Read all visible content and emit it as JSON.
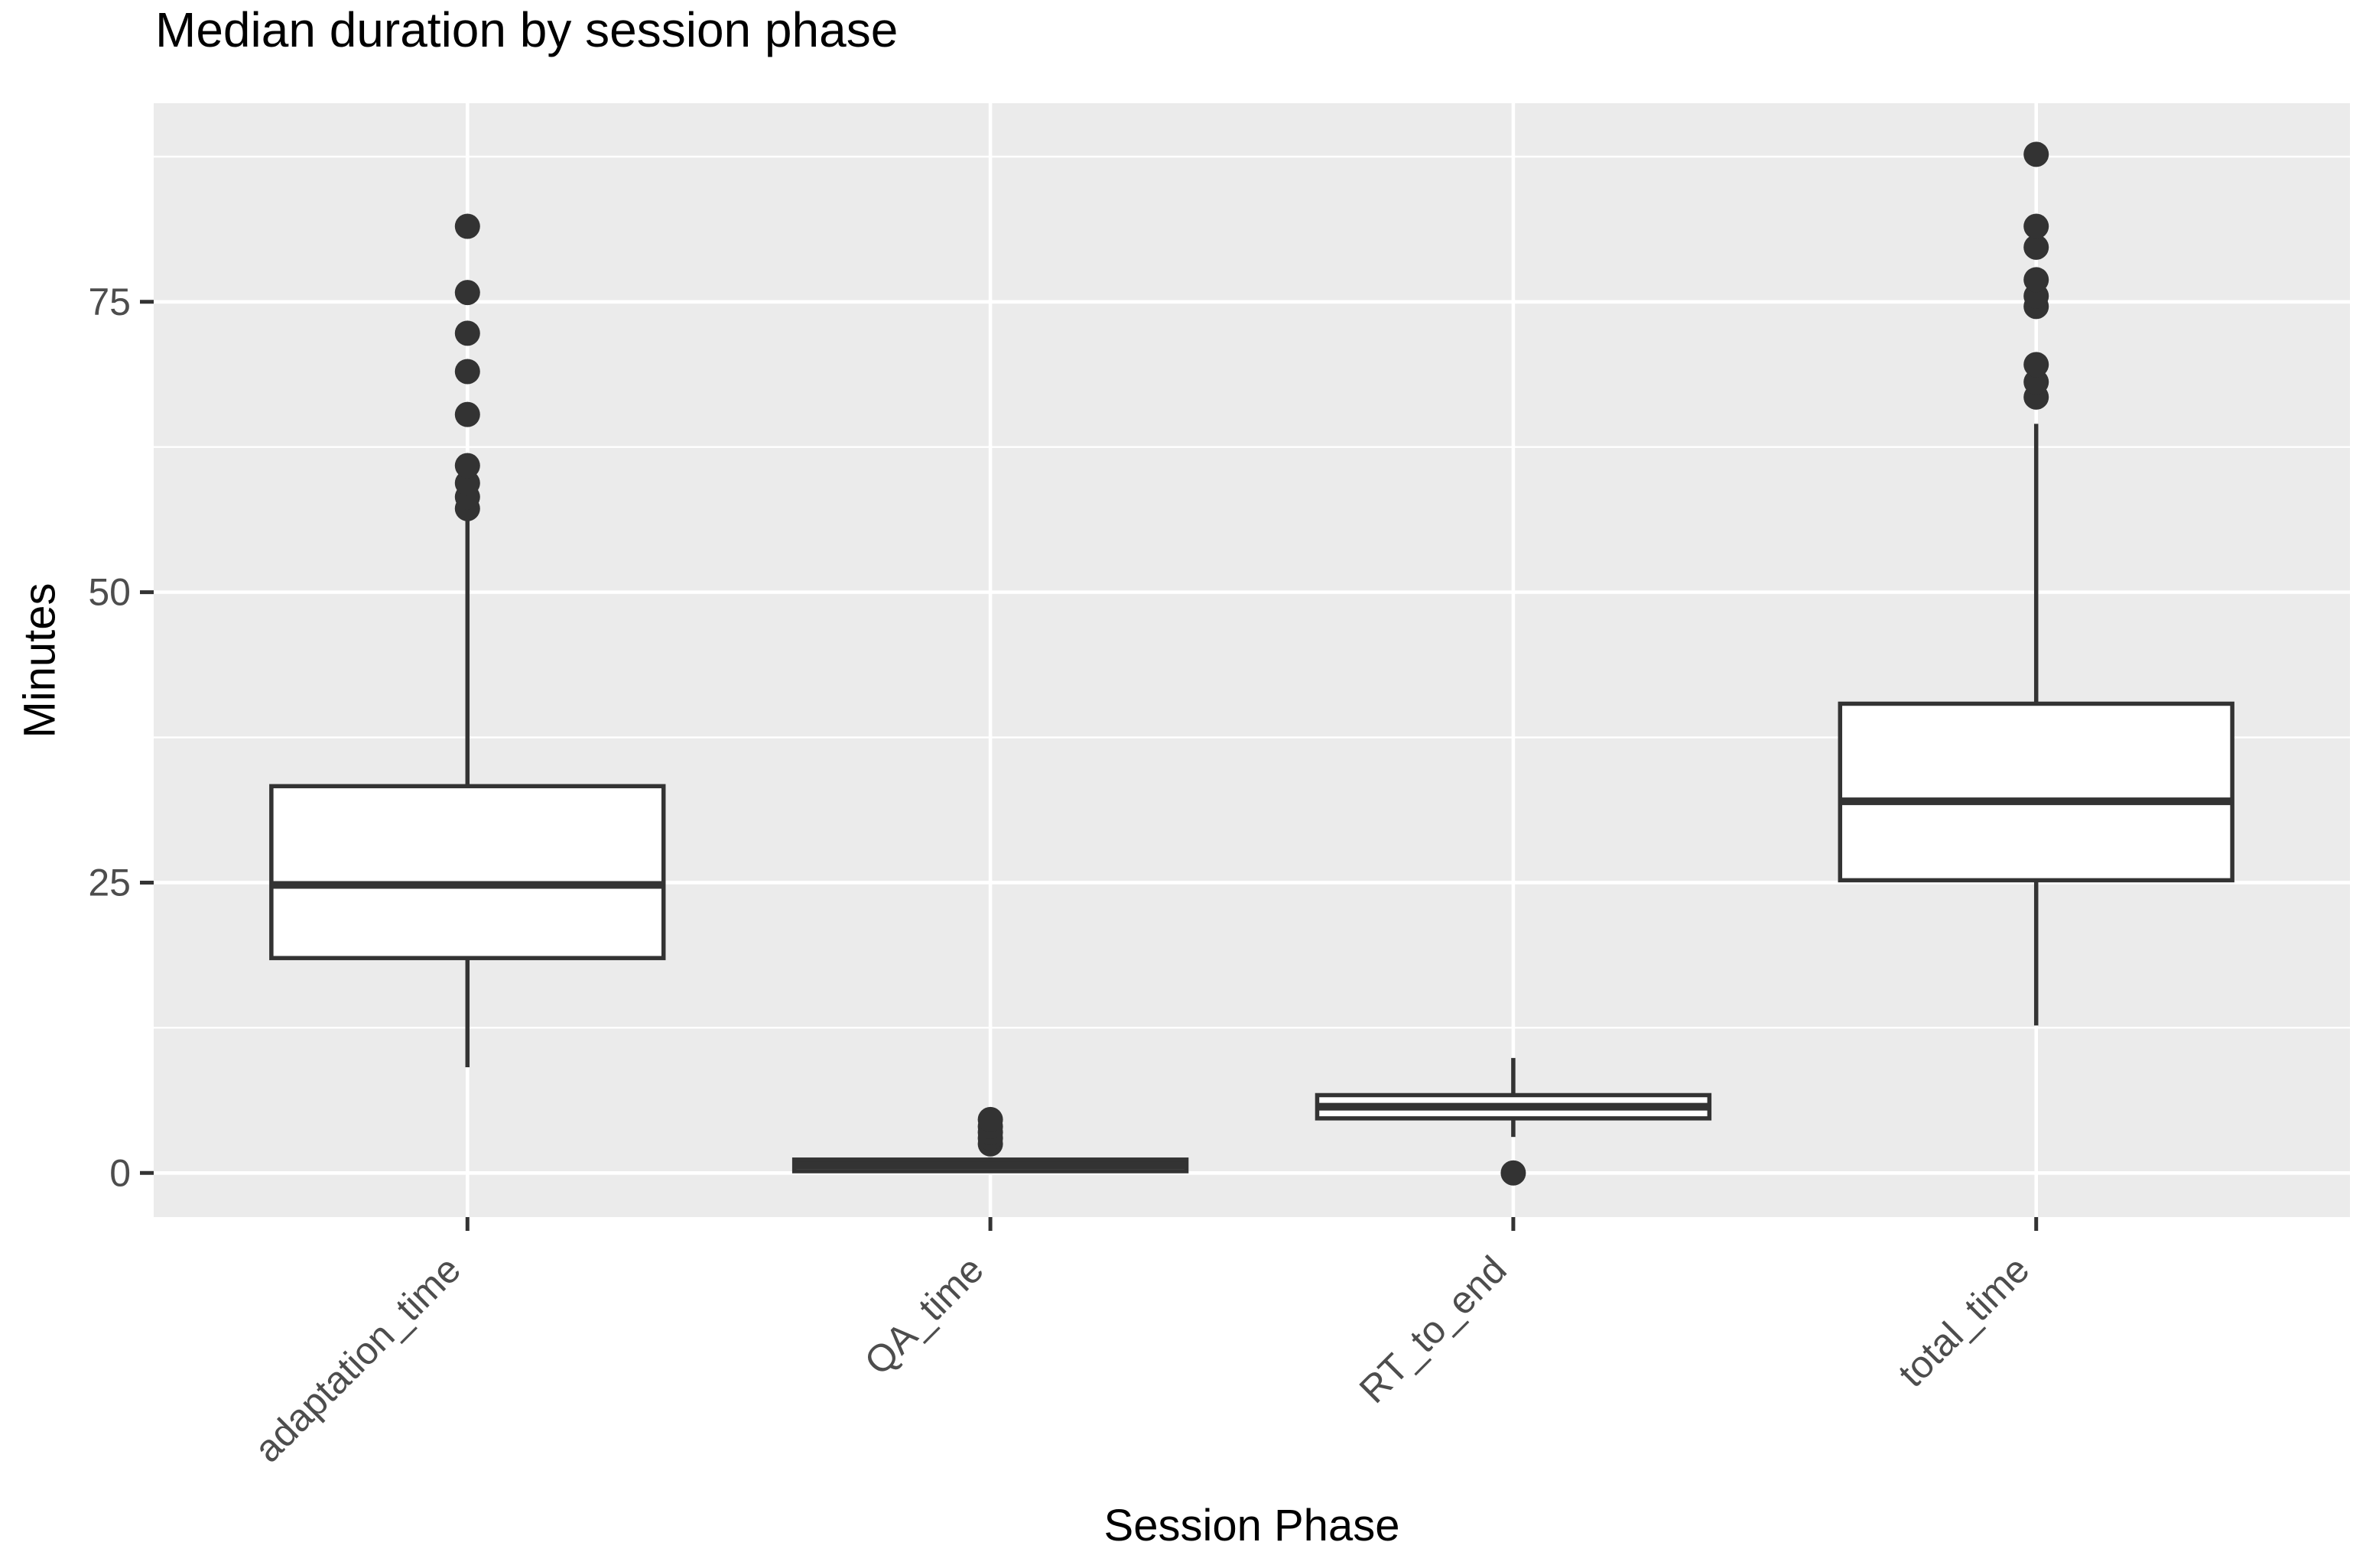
{
  "chart_data": {
    "type": "boxplot",
    "title": "Median duration by session phase",
    "xlabel": "Session Phase",
    "ylabel": "Minutes",
    "categories": [
      "adaptation_time",
      "QA_time",
      "RT_to_end",
      "total_time"
    ],
    "yticks": [
      0,
      25,
      50,
      75
    ],
    "yticks_minor": [
      12.5,
      37.5,
      62.5,
      87.5
    ],
    "ylim": [
      -3.8,
      92.1
    ],
    "grid": true,
    "legend": "none",
    "series": [
      {
        "name": "adaptation_time",
        "whisker_low": 9.1,
        "q1": 18.5,
        "median": 24.8,
        "q3": 33.3,
        "whisker_high": 56.3,
        "outliers": [
          57.2,
          58.2,
          59.4,
          60.9,
          65.3,
          69.0,
          72.3,
          75.8,
          81.5
        ]
      },
      {
        "name": "QA_time",
        "whisker_low": 0.0,
        "q1": 0.15,
        "median": 0.65,
        "q3": 1.15,
        "whisker_high": 1.35,
        "outliers": [
          2.5,
          3.0,
          3.5,
          4.0,
          4.6
        ]
      },
      {
        "name": "RT_to_end",
        "whisker_low": 3.1,
        "q1": 4.7,
        "median": 5.7,
        "q3": 6.7,
        "whisker_high": 9.9,
        "outliers": [
          0
        ]
      },
      {
        "name": "total_time",
        "whisker_low": 12.7,
        "q1": 25.2,
        "median": 32.0,
        "q3": 40.4,
        "whisker_high": 64.5,
        "outliers": [
          66.8,
          68.1,
          69.6,
          74.6,
          75.5,
          76.9,
          79.7,
          81.5,
          87.7
        ]
      }
    ],
    "colors": {
      "panel_bg": "#EBEBEB",
      "gridline": "#FFFFFF",
      "box_stroke": "#333333",
      "box_fill": "#FFFFFF",
      "outlier": "#333333",
      "tick_mark": "#333333",
      "tick_label": "#4D4D4D",
      "text": "#000000"
    }
  }
}
